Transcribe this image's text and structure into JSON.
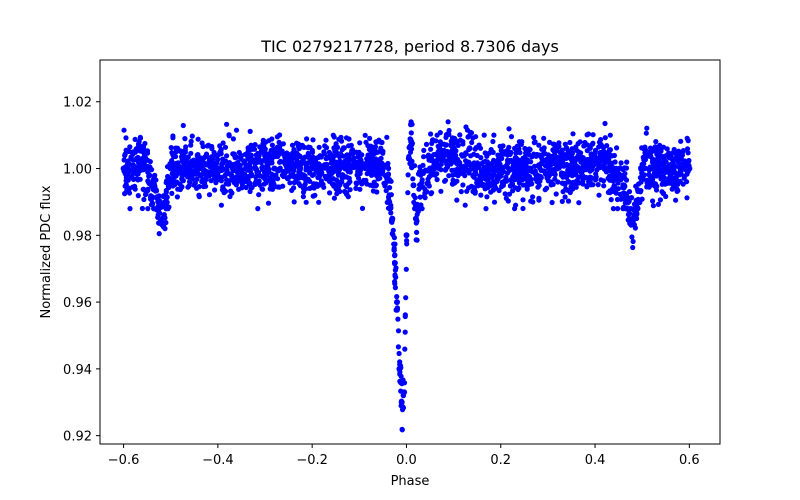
{
  "chart_data": {
    "type": "scatter",
    "title": "TIC 0279217728, period 8.7306 days",
    "xlabel": "Phase",
    "ylabel": "Normalized PDC flux",
    "xlim": [
      -0.65,
      0.665
    ],
    "ylim": [
      0.9175,
      1.0325
    ],
    "xticks": [
      -0.6,
      -0.4,
      -0.2,
      0.0,
      0.2,
      0.4,
      0.6
    ],
    "xtick_labels": [
      "−0.6",
      "−0.4",
      "−0.2",
      "0.0",
      "0.2",
      "0.4",
      "0.6"
    ],
    "yticks": [
      0.92,
      0.94,
      0.96,
      0.98,
      1.0,
      1.02
    ],
    "ytick_labels": [
      "0.92",
      "0.94",
      "0.96",
      "0.98",
      "1.00",
      "1.02"
    ],
    "grid": false,
    "marker_color": "#0000ff",
    "series": [
      {
        "x": [
          -0.6,
          -0.58,
          -0.56,
          -0.54,
          -0.52,
          -0.51,
          -0.5,
          -0.48,
          -0.44,
          -0.4,
          -0.36,
          -0.32,
          -0.28,
          -0.24,
          -0.2,
          -0.16,
          -0.12,
          -0.08,
          -0.06,
          -0.05,
          -0.04,
          -0.03,
          -0.02,
          -0.015,
          -0.01,
          -0.005,
          0.0,
          0.005,
          0.01,
          0.015,
          0.02,
          0.03,
          0.05,
          0.08,
          0.1,
          0.14,
          0.2,
          0.26,
          0.32,
          0.38,
          0.42,
          0.46,
          0.48,
          0.49,
          0.5,
          0.52,
          0.56,
          0.6
        ],
        "y": [
          1.0,
          1.001,
          1.002,
          0.995,
          0.984,
          0.99,
          1.0,
          1.0,
          1.0,
          1.0,
          1.0,
          1.0,
          1.0,
          1.0,
          1.0,
          1.0,
          1.0,
          1.001,
          1.002,
          1.0,
          0.998,
          0.985,
          0.96,
          0.94,
          0.93,
          0.933,
          0.98,
          1.003,
          1.008,
          0.995,
          0.985,
          0.995,
          1.0,
          1.004,
          1.003,
          1.0,
          1.0,
          1.0,
          1.0,
          1.001,
          1.002,
          0.995,
          0.984,
          0.988,
          1.0,
          1.0,
          1.0,
          1.0
        ]
      }
    ]
  }
}
